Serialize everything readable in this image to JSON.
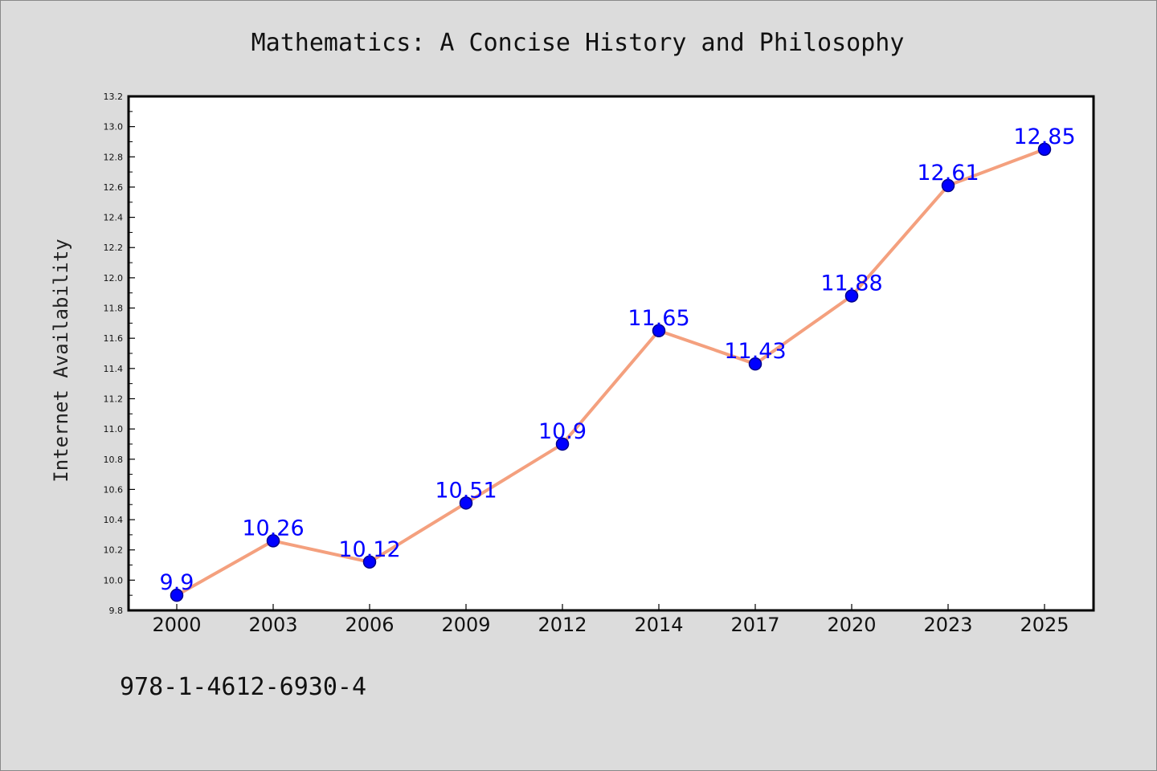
{
  "title": "Mathematics: A Concise History and Philosophy",
  "footer": "978-1-4612-6930-4",
  "colors": {
    "background": "#dcdcdc",
    "plot_background": "#ffffff",
    "line": "#f4a07e",
    "marker": "#0000ff",
    "marker_edge": "#00008b",
    "data_label": "#0000ff"
  },
  "chart_data": {
    "type": "line",
    "title": "Mathematics: A Concise History and Philosophy",
    "xlabel": "",
    "ylabel": "Internet Availability",
    "ylim": [
      9.8,
      13.2
    ],
    "grid": false,
    "categories": [
      "2000",
      "2003",
      "2006",
      "2009",
      "2012",
      "2014",
      "2017",
      "2020",
      "2023",
      "2025"
    ],
    "series": [
      {
        "values": [
          9.9,
          10.26,
          10.12,
          10.51,
          10.9,
          11.65,
          11.43,
          11.88,
          12.61,
          12.85
        ],
        "labels": [
          "9.9",
          "10.26",
          "10.12",
          "10.51",
          "10.9",
          "11.65",
          "11.43",
          "11.88",
          "12.61",
          "12.85"
        ]
      }
    ],
    "yticks": [
      "9.8",
      "10.0",
      "10.2",
      "10.4",
      "10.6",
      "10.8",
      "11.0",
      "11.2",
      "11.4",
      "11.6",
      "11.8",
      "12.0",
      "12.2",
      "12.4",
      "12.6",
      "12.8",
      "13.0",
      "13.2"
    ]
  }
}
